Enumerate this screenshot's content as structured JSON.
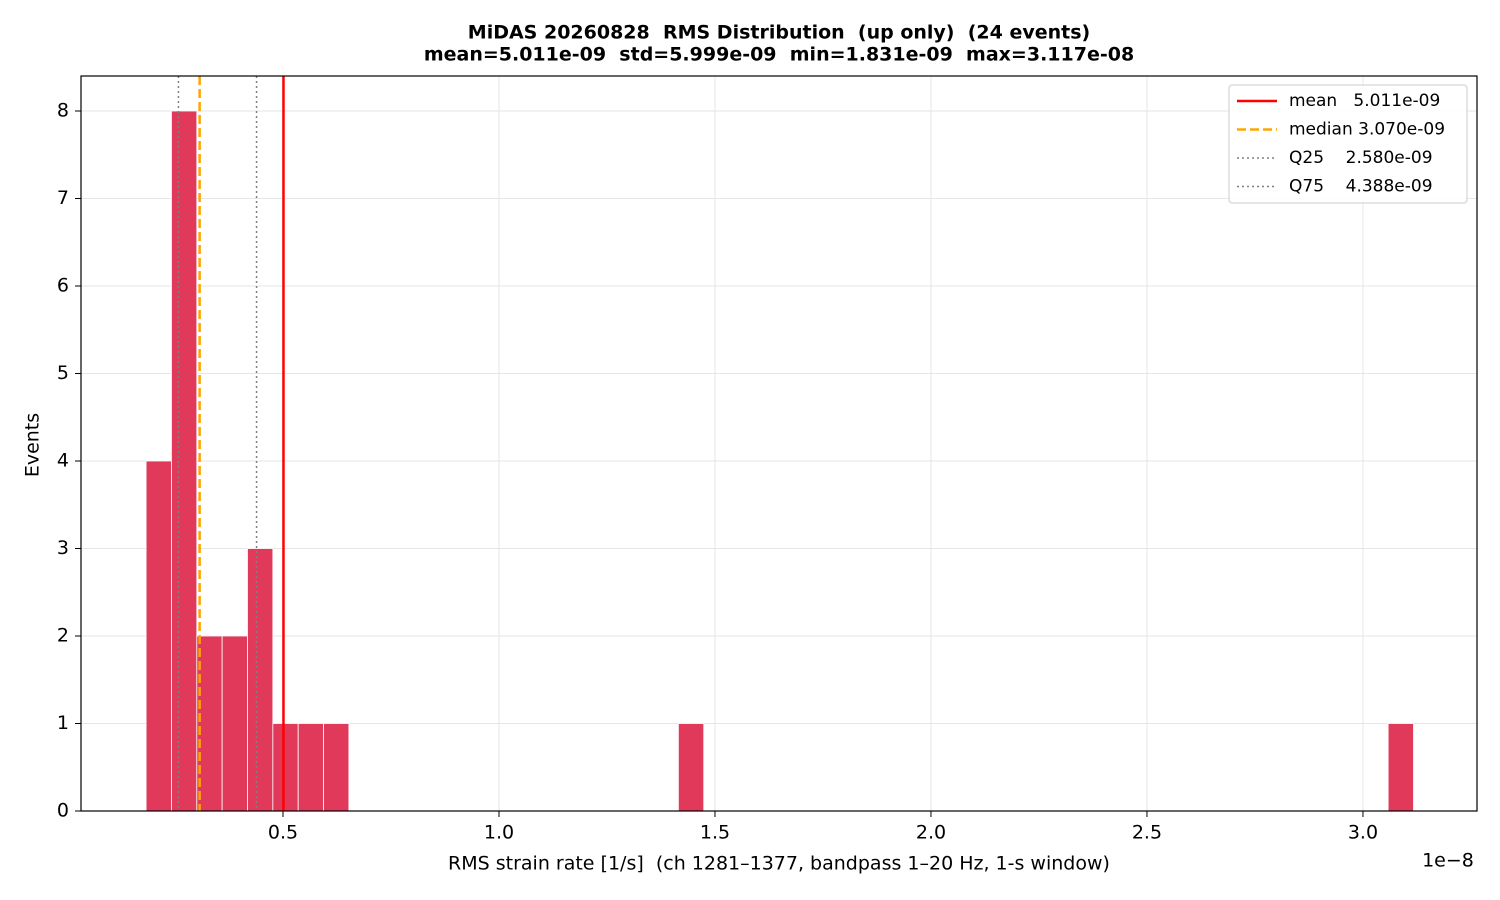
{
  "chart_data": {
    "type": "histogram",
    "title": "MiDAS 20260828  RMS Distribution  (up only)  (24 events)",
    "subtitle": "mean=5.011e-09  std=5.999e-09  min=1.831e-09  max=3.117e-08",
    "x_label": "RMS strain rate [1/s]  (ch 1281–1377, bandpass 1–20 Hz, 1-s window)",
    "x_offset_label": "1e−8",
    "y_label": "Events",
    "color": "#e0395a",
    "bins": [
      0.1831,
      0.2418,
      0.3005,
      0.3591,
      0.4178,
      0.4765,
      0.5352,
      0.5938,
      0.6525,
      0.7112,
      0.7699,
      0.8285,
      0.8872,
      0.9459,
      1.0046,
      1.0633,
      1.1219,
      1.1806,
      1.2393,
      1.298,
      1.3567,
      1.4153,
      1.474,
      1.5327,
      1.5914,
      1.65,
      1.7087,
      1.7674,
      1.8261,
      1.8848,
      1.9434,
      2.0021,
      2.0608,
      2.1195,
      2.1781,
      2.2368,
      2.2955,
      2.3542,
      2.4129,
      2.4715,
      2.5302,
      2.5889,
      2.6476,
      2.7063,
      2.7649,
      2.8236,
      2.8823,
      2.941,
      2.9996,
      3.0583,
      3.117
    ],
    "counts": [
      4,
      8,
      2,
      2,
      3,
      1,
      1,
      1,
      0,
      0,
      0,
      0,
      0,
      0,
      0,
      0,
      0,
      0,
      0,
      0,
      0,
      1,
      0,
      0,
      0,
      0,
      0,
      0,
      0,
      0,
      0,
      0,
      0,
      0,
      0,
      0,
      0,
      0,
      0,
      0,
      0,
      0,
      0,
      0,
      0,
      0,
      0,
      0,
      0,
      1
    ],
    "lines": [
      {
        "label": "mean   5.011e-09",
        "value": 0.5011,
        "color": "#ff0000",
        "style": "solid"
      },
      {
        "label": "median 3.070e-09",
        "value": 0.307,
        "color": "#ffa500",
        "style": "dashed"
      },
      {
        "label": "Q25    2.580e-09",
        "value": 0.258,
        "color": "#808080",
        "style": "dotted"
      },
      {
        "label": "Q75    4.388e-09",
        "value": 0.4388,
        "color": "#808080",
        "style": "dotted"
      }
    ],
    "xlim": [
      0.0324,
      3.264
    ],
    "ylim": [
      0,
      8.4
    ],
    "xticks": [
      0.5,
      {
        "value": 1,
        "label": "1.0"
      },
      1.5,
      {
        "value": 2,
        "label": "2.0"
      },
      2.5,
      {
        "value": 3,
        "label": "3.0"
      }
    ],
    "yticks": [
      0,
      1,
      2,
      3,
      4,
      5,
      6,
      7,
      8
    ],
    "grid": true,
    "legend": "upper right"
  }
}
